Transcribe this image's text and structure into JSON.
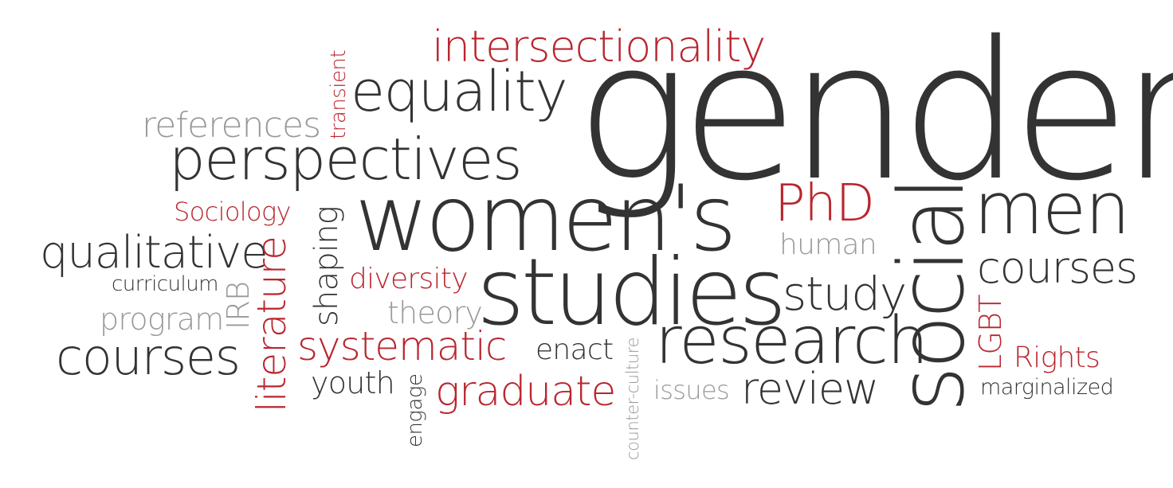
{
  "palette": {
    "dark": "#333333",
    "red": "#b9262e",
    "grey": "#999999",
    "background": "#ffffff"
  },
  "words": {
    "gender": "gender",
    "womens": "women's",
    "studies": "studies",
    "social": "social",
    "research": "research",
    "perspectives": "perspectives",
    "equality": "equality",
    "intersectionality": "intersectionality",
    "men": "men",
    "phd": "PhD",
    "courses_right": "courses",
    "courses_left": "courses",
    "qualitative": "qualitative",
    "references": "references",
    "transient": "transient",
    "sociology": "Sociology",
    "shaping": "shaping",
    "human": "human",
    "study": "study",
    "curriculum": "curriculum",
    "irb": "IRB",
    "literature": "literature",
    "diversity": "diversity",
    "program": "program",
    "theory": "theory",
    "systematic": "systematic",
    "enact": "enact",
    "counter_culture": "counter-culture",
    "lgbt": "LGBT",
    "rights": "Rights",
    "youth": "youth",
    "graduate": "graduate",
    "engage": "engage",
    "issues": "issues",
    "review": "review",
    "marginalized": "marginalized"
  }
}
